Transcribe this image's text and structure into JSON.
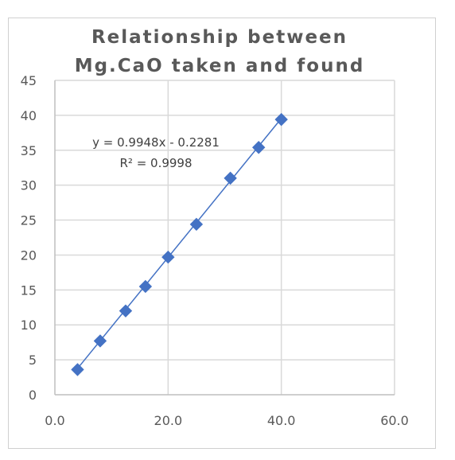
{
  "chart_data": {
    "type": "scatter",
    "title": [
      "Relationship between",
      "Mg.CaO taken and found"
    ],
    "xlim": [
      0,
      60
    ],
    "ylim": [
      0,
      45
    ],
    "x_ticks": [
      0,
      20,
      40,
      60
    ],
    "x_tick_labels": [
      "0.0",
      "20.0",
      "40.0",
      "60.0"
    ],
    "y_ticks": [
      0,
      5,
      10,
      15,
      20,
      25,
      30,
      35,
      40,
      45
    ],
    "y_tick_labels": [
      "0",
      "5",
      "10",
      "15",
      "20",
      "25",
      "30",
      "35",
      "40",
      "45"
    ],
    "grid": true,
    "series": [
      {
        "x": [
          4,
          8,
          12.5,
          16,
          20,
          25,
          31,
          36,
          40
        ],
        "y": [
          3.6,
          7.7,
          12.0,
          15.5,
          19.7,
          24.4,
          31.0,
          35.4,
          39.4
        ]
      }
    ],
    "trendline": {
      "slope": 0.9948,
      "intercept": -0.2281,
      "x_range": [
        4,
        40
      ],
      "equation": "y = 0.9948x - 0.2281",
      "r_squared": "R² = 0.9998"
    },
    "colors": {
      "series": "#4472c4",
      "grid": "#d9d9d9",
      "text": "#595959"
    }
  }
}
